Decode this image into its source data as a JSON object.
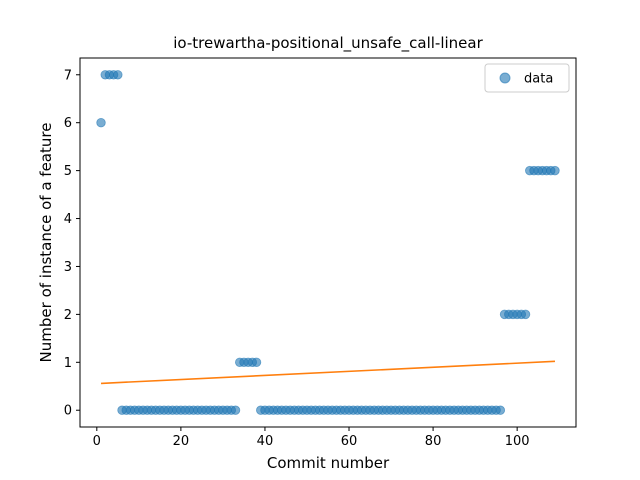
{
  "chart_data": {
    "type": "scatter",
    "title": "io-trewartha-positional_unsafe_call-linear",
    "xlabel": "Commit number",
    "ylabel": "Number of instance of a feature",
    "xlim": [
      -4,
      114
    ],
    "ylim": [
      -0.35,
      7.35
    ],
    "xticks": [
      0,
      20,
      40,
      60,
      80,
      100
    ],
    "yticks": [
      0,
      1,
      2,
      3,
      4,
      5,
      6,
      7
    ],
    "legend": {
      "position": "top-right",
      "entries": [
        "data"
      ]
    },
    "colors": {
      "data": "#1f77b4",
      "fit": "#ff7f0e"
    },
    "series": [
      {
        "name": "data",
        "kind": "scatter",
        "points": [
          [
            1,
            6
          ],
          [
            2,
            7
          ],
          [
            3,
            7
          ],
          [
            4,
            7
          ],
          [
            5,
            7
          ],
          [
            6,
            0
          ],
          [
            7,
            0
          ],
          [
            8,
            0
          ],
          [
            9,
            0
          ],
          [
            10,
            0
          ],
          [
            11,
            0
          ],
          [
            12,
            0
          ],
          [
            13,
            0
          ],
          [
            14,
            0
          ],
          [
            15,
            0
          ],
          [
            16,
            0
          ],
          [
            17,
            0
          ],
          [
            18,
            0
          ],
          [
            19,
            0
          ],
          [
            20,
            0
          ],
          [
            21,
            0
          ],
          [
            22,
            0
          ],
          [
            23,
            0
          ],
          [
            24,
            0
          ],
          [
            25,
            0
          ],
          [
            26,
            0
          ],
          [
            27,
            0
          ],
          [
            28,
            0
          ],
          [
            29,
            0
          ],
          [
            30,
            0
          ],
          [
            31,
            0
          ],
          [
            32,
            0
          ],
          [
            33,
            0
          ],
          [
            34,
            1
          ],
          [
            35,
            1
          ],
          [
            36,
            1
          ],
          [
            37,
            1
          ],
          [
            38,
            1
          ],
          [
            39,
            0
          ],
          [
            40,
            0
          ],
          [
            41,
            0
          ],
          [
            42,
            0
          ],
          [
            43,
            0
          ],
          [
            44,
            0
          ],
          [
            45,
            0
          ],
          [
            46,
            0
          ],
          [
            47,
            0
          ],
          [
            48,
            0
          ],
          [
            49,
            0
          ],
          [
            50,
            0
          ],
          [
            51,
            0
          ],
          [
            52,
            0
          ],
          [
            53,
            0
          ],
          [
            54,
            0
          ],
          [
            55,
            0
          ],
          [
            56,
            0
          ],
          [
            57,
            0
          ],
          [
            58,
            0
          ],
          [
            59,
            0
          ],
          [
            60,
            0
          ],
          [
            61,
            0
          ],
          [
            62,
            0
          ],
          [
            63,
            0
          ],
          [
            64,
            0
          ],
          [
            65,
            0
          ],
          [
            66,
            0
          ],
          [
            67,
            0
          ],
          [
            68,
            0
          ],
          [
            69,
            0
          ],
          [
            70,
            0
          ],
          [
            71,
            0
          ],
          [
            72,
            0
          ],
          [
            73,
            0
          ],
          [
            74,
            0
          ],
          [
            75,
            0
          ],
          [
            76,
            0
          ],
          [
            77,
            0
          ],
          [
            78,
            0
          ],
          [
            79,
            0
          ],
          [
            80,
            0
          ],
          [
            81,
            0
          ],
          [
            82,
            0
          ],
          [
            83,
            0
          ],
          [
            84,
            0
          ],
          [
            85,
            0
          ],
          [
            86,
            0
          ],
          [
            87,
            0
          ],
          [
            88,
            0
          ],
          [
            89,
            0
          ],
          [
            90,
            0
          ],
          [
            91,
            0
          ],
          [
            92,
            0
          ],
          [
            93,
            0
          ],
          [
            94,
            0
          ],
          [
            95,
            0
          ],
          [
            96,
            0
          ],
          [
            97,
            2
          ],
          [
            98,
            2
          ],
          [
            99,
            2
          ],
          [
            100,
            2
          ],
          [
            101,
            2
          ],
          [
            102,
            2
          ],
          [
            103,
            5
          ],
          [
            104,
            5
          ],
          [
            105,
            5
          ],
          [
            106,
            5
          ],
          [
            107,
            5
          ],
          [
            108,
            5
          ],
          [
            109,
            5
          ]
        ]
      },
      {
        "kind": "line",
        "points": [
          [
            1,
            0.56
          ],
          [
            109,
            1.02
          ]
        ]
      }
    ]
  }
}
